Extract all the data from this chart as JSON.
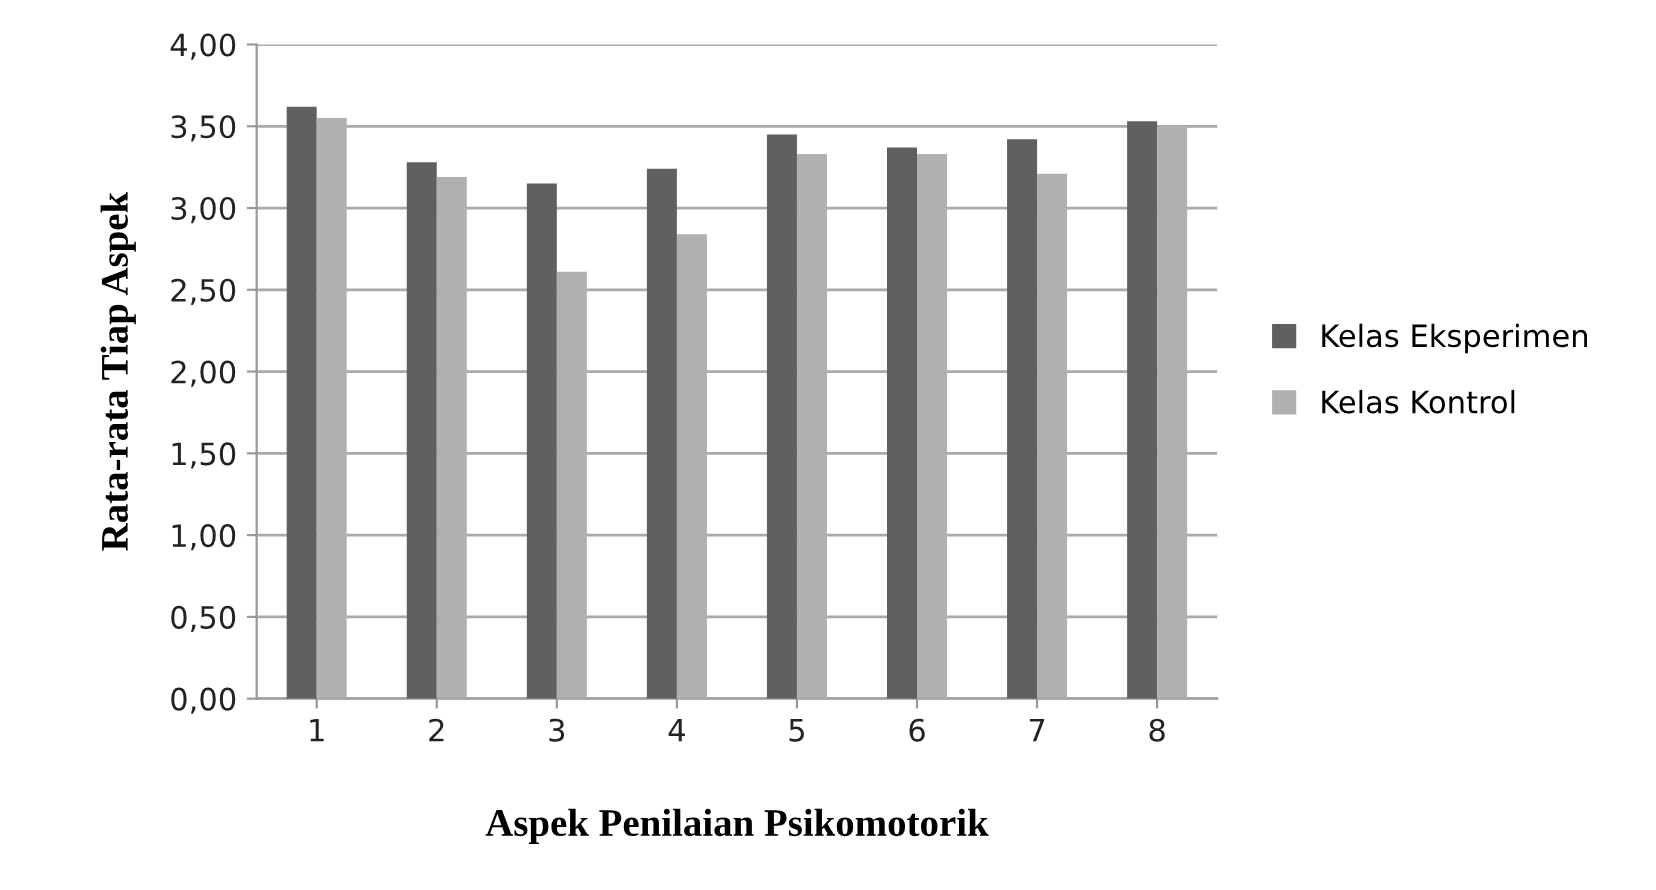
{
  "chart_data": {
    "type": "bar",
    "xlabel": "Aspek Penilaian Psikomotorik",
    "ylabel": "Rata-rata Tiap Aspek",
    "categories": [
      "1",
      "2",
      "3",
      "4",
      "5",
      "6",
      "7",
      "8"
    ],
    "series": [
      {
        "name": "Kelas Eksperimen",
        "color": "#606060",
        "values": [
          3.62,
          3.28,
          3.15,
          3.24,
          3.45,
          3.37,
          3.42,
          3.53
        ]
      },
      {
        "name": "Kelas Kontrol",
        "color": "#b0b0b0",
        "values": [
          3.55,
          3.19,
          2.61,
          2.84,
          3.33,
          3.33,
          3.21,
          3.5
        ]
      }
    ],
    "ylim": [
      0,
      4
    ],
    "yticks": [
      {
        "value": 0,
        "label": "0,00"
      },
      {
        "value": 0.5,
        "label": "0,50"
      },
      {
        "value": 1,
        "label": "1,00"
      },
      {
        "value": 1.5,
        "label": "1,50"
      },
      {
        "value": 2,
        "label": "2,00"
      },
      {
        "value": 2.5,
        "label": "2,50"
      },
      {
        "value": 3,
        "label": "3,00"
      },
      {
        "value": 3.5,
        "label": "3,50"
      },
      {
        "value": 4,
        "label": "4,00"
      }
    ],
    "grid": "y",
    "legend": "right"
  }
}
